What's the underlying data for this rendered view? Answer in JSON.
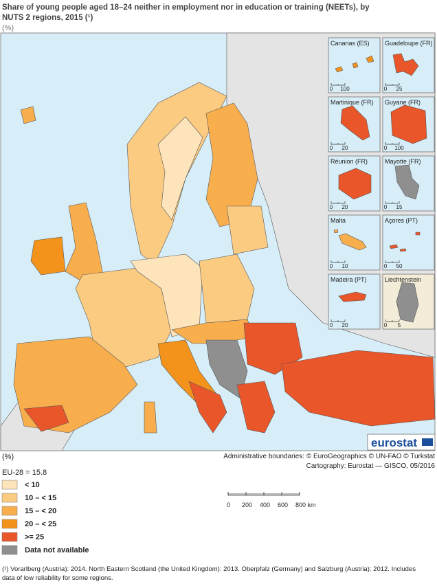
{
  "header": {
    "title": "Share of young people aged 18–24 neither in employment nor in education or training (NEETs), by NUTS 2 regions, 2015 (¹)",
    "unit": "(%)"
  },
  "insets": [
    {
      "name": "Canarias (ES)",
      "scale": [
        0,
        100
      ]
    },
    {
      "name": "Guadeloupe (FR)",
      "scale": [
        0,
        25
      ]
    },
    {
      "name": "Martinique (FR)",
      "scale": [
        0,
        20
      ]
    },
    {
      "name": "Guyane (FR)",
      "scale": [
        0,
        100
      ]
    },
    {
      "name": "Réunion (FR)",
      "scale": [
        0,
        20
      ]
    },
    {
      "name": "Mayotte (FR)",
      "scale": [
        0,
        15
      ]
    },
    {
      "name": "Malta",
      "scale": [
        0,
        10
      ]
    },
    {
      "name": "Açores (PT)",
      "scale": [
        0,
        50
      ]
    },
    {
      "name": "Madeira (PT)",
      "scale": [
        0,
        20
      ]
    },
    {
      "name": "Liechtenstein",
      "scale": [
        0,
        5
      ]
    }
  ],
  "logo": "eurostat",
  "legend": {
    "unit": "(%)",
    "average": "EU-28 = 15.8",
    "items": [
      {
        "label": "< 10",
        "color": "#fde4bb"
      },
      {
        "label": "10 – < 15",
        "color": "#fccb82"
      },
      {
        "label": "15 – < 20",
        "color": "#f9ae4d"
      },
      {
        "label": "20 – < 25",
        "color": "#f4931b"
      },
      {
        "label": ">= 25",
        "color": "#e8562a"
      },
      {
        "label": "Data not available",
        "color": "#8f8f8f"
      }
    ]
  },
  "credits": [
    "Administrative boundaries: © EuroGeographics © UN-FAO © Turkstat",
    "Cartography: Eurostat — GISCO, 05/2016"
  ],
  "scale_bar": [
    0,
    200,
    400,
    600,
    "800 km"
  ],
  "footnote": [
    "(¹) Vorarlberg (Austria): 2014. North Eastern Scotland (the United Kingdom): 2013. Oberpfalz (Germany) and Salzburg (Austria): 2012. Includes",
    "data of low reliability for some regions."
  ]
}
